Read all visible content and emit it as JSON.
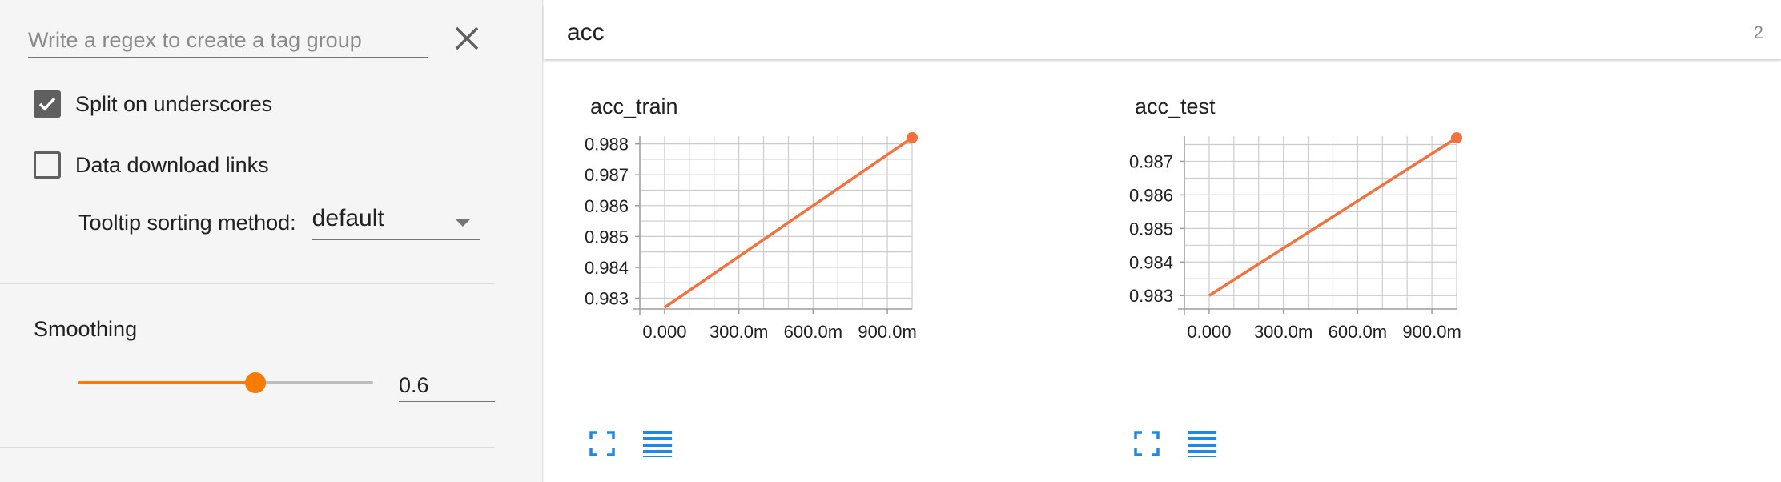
{
  "sidebar": {
    "regex_placeholder": "Write a regex to create a tag group",
    "regex_value": "",
    "split_on_underscores": {
      "label": "Split on underscores",
      "checked": true
    },
    "data_download_links": {
      "label": "Data download links",
      "checked": false
    },
    "tooltip_sorting": {
      "label": "Tooltip sorting method:",
      "value": "default"
    },
    "smoothing": {
      "title": "Smoothing",
      "value": "0.6",
      "min": 0,
      "max": 1,
      "level": 0.6
    }
  },
  "main": {
    "group": {
      "name": "acc",
      "count": "2"
    }
  },
  "colors": {
    "series": "#f4703d",
    "accent": "#f57c00",
    "icon": "#1e88e5",
    "grid": "#cccccc",
    "axis": "#9e9e9e"
  },
  "chart_data": [
    {
      "type": "line",
      "title": "acc_train",
      "x": [
        0,
        1
      ],
      "y": [
        0.9827,
        0.9882
      ],
      "xlim": [
        -0.1,
        1.0
      ],
      "ylim": [
        0.98265,
        0.98825
      ],
      "xticks": [
        0,
        0.3,
        0.6,
        0.9
      ],
      "xtick_labels": [
        "0.000",
        "300.0m",
        "600.0m",
        "900.0m"
      ],
      "yticks": [
        0.983,
        0.984,
        0.985,
        0.986,
        0.987,
        0.988
      ],
      "ytick_labels": [
        "0.983",
        "0.984",
        "0.985",
        "0.986",
        "0.987",
        "0.988"
      ],
      "grid": true
    },
    {
      "type": "line",
      "title": "acc_test",
      "x": [
        0,
        1
      ],
      "y": [
        0.983,
        0.9877
      ],
      "xlim": [
        -0.1,
        1.0
      ],
      "ylim": [
        0.9826,
        0.98775
      ],
      "xticks": [
        0,
        0.3,
        0.6,
        0.9
      ],
      "xtick_labels": [
        "0.000",
        "300.0m",
        "600.0m",
        "900.0m"
      ],
      "yticks": [
        0.983,
        0.984,
        0.985,
        0.986,
        0.987
      ],
      "ytick_labels": [
        "0.983",
        "0.984",
        "0.985",
        "0.986",
        "0.987"
      ],
      "grid": true
    }
  ]
}
